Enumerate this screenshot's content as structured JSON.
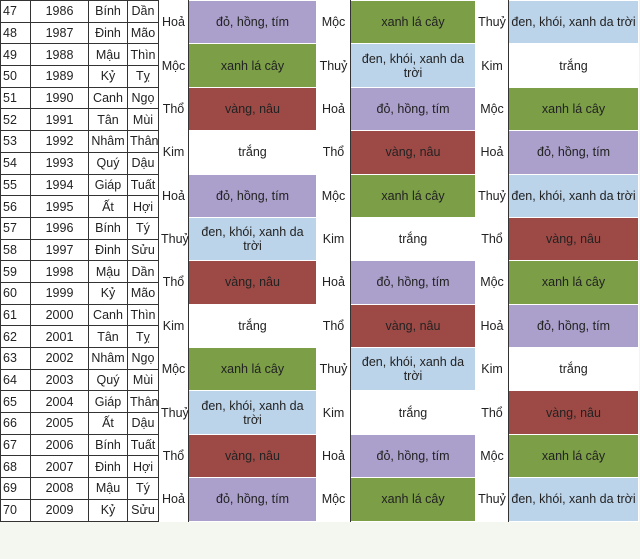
{
  "palette": {
    "đỏ, hồng, tím": "#ab9fcb",
    "xanh lá cây": "#7b9e47",
    "đen, khói, xanh da trời": "#bcd4ea",
    "trắng": "#ffffff",
    "vàng, nâu": "#9d4a46"
  },
  "groups": [
    {
      "rows": [
        [
          "47",
          "1986",
          "Bính",
          "Dần"
        ],
        [
          "48",
          "1987",
          "Đinh",
          "Mão"
        ]
      ],
      "cells": [
        [
          "Hoả",
          "đỏ, hồng, tím"
        ],
        [
          "Mộc",
          "xanh lá cây"
        ],
        [
          "Thuỷ",
          "đen, khói, xanh da trời"
        ]
      ]
    },
    {
      "rows": [
        [
          "49",
          "1988",
          "Mậu",
          "Thìn"
        ],
        [
          "50",
          "1989",
          "Kỷ",
          "Tỵ"
        ]
      ],
      "cells": [
        [
          "Mộc",
          "xanh lá cây"
        ],
        [
          "Thuỷ",
          "đen, khói, xanh da trời"
        ],
        [
          "Kim",
          "trắng"
        ]
      ]
    },
    {
      "rows": [
        [
          "51",
          "1990",
          "Canh",
          "Ngọ"
        ],
        [
          "52",
          "1991",
          "Tân",
          "Mùi"
        ]
      ],
      "cells": [
        [
          "Thổ",
          "vàng, nâu"
        ],
        [
          "Hoả",
          "đỏ, hồng, tím"
        ],
        [
          "Mộc",
          "xanh lá cây"
        ]
      ]
    },
    {
      "rows": [
        [
          "53",
          "1992",
          "Nhâm",
          "Thân"
        ],
        [
          "54",
          "1993",
          "Quý",
          "Dậu"
        ]
      ],
      "cells": [
        [
          "Kim",
          "trắng"
        ],
        [
          "Thổ",
          "vàng, nâu"
        ],
        [
          "Hoả",
          "đỏ, hồng, tím"
        ]
      ]
    },
    {
      "rows": [
        [
          "55",
          "1994",
          "Giáp",
          "Tuất"
        ],
        [
          "56",
          "1995",
          "Ất",
          "Hợi"
        ]
      ],
      "cells": [
        [
          "Hoả",
          "đỏ, hồng, tím"
        ],
        [
          "Mộc",
          "xanh lá cây"
        ],
        [
          "Thuỷ",
          "đen, khói, xanh da trời"
        ]
      ]
    },
    {
      "rows": [
        [
          "57",
          "1996",
          "Bính",
          "Tý"
        ],
        [
          "58",
          "1997",
          "Đinh",
          "Sửu"
        ]
      ],
      "cells": [
        [
          "Thuỷ",
          "đen, khói, xanh da trời"
        ],
        [
          "Kim",
          "trắng"
        ],
        [
          "Thổ",
          "vàng, nâu"
        ]
      ]
    },
    {
      "rows": [
        [
          "59",
          "1998",
          "Mậu",
          "Dần"
        ],
        [
          "60",
          "1999",
          "Kỷ",
          "Mão"
        ]
      ],
      "cells": [
        [
          "Thổ",
          "vàng, nâu"
        ],
        [
          "Hoả",
          "đỏ, hồng, tím"
        ],
        [
          "Mộc",
          "xanh lá cây"
        ]
      ]
    },
    {
      "rows": [
        [
          "61",
          "2000",
          "Canh",
          "Thìn"
        ],
        [
          "62",
          "2001",
          "Tân",
          "Tỵ"
        ]
      ],
      "cells": [
        [
          "Kim",
          "trắng"
        ],
        [
          "Thổ",
          "vàng, nâu"
        ],
        [
          "Hoả",
          "đỏ, hồng, tím"
        ]
      ]
    },
    {
      "rows": [
        [
          "63",
          "2002",
          "Nhâm",
          "Ngọ"
        ],
        [
          "64",
          "2003",
          "Quý",
          "Mùi"
        ]
      ],
      "cells": [
        [
          "Mộc",
          "xanh lá cây"
        ],
        [
          "Thuỷ",
          "đen, khói, xanh da trời"
        ],
        [
          "Kim",
          "trắng"
        ]
      ]
    },
    {
      "rows": [
        [
          "65",
          "2004",
          "Giáp",
          "Thân"
        ],
        [
          "66",
          "2005",
          "Ất",
          "Dậu"
        ]
      ],
      "cells": [
        [
          "Thuỷ",
          "đen, khói, xanh da trời"
        ],
        [
          "Kim",
          "trắng"
        ],
        [
          "Thổ",
          "vàng, nâu"
        ]
      ]
    },
    {
      "rows": [
        [
          "67",
          "2006",
          "Bính",
          "Tuất"
        ],
        [
          "68",
          "2007",
          "Đinh",
          "Hợi"
        ]
      ],
      "cells": [
        [
          "Thổ",
          "vàng, nâu"
        ],
        [
          "Hoả",
          "đỏ, hồng, tím"
        ],
        [
          "Mộc",
          "xanh lá cây"
        ]
      ]
    },
    {
      "rows": [
        [
          "69",
          "2008",
          "Mậu",
          "Tý"
        ],
        [
          "70",
          "2009",
          "Kỷ",
          "Sửu"
        ]
      ],
      "cells": [
        [
          "Hoả",
          "đỏ, hồng, tím"
        ],
        [
          "Mộc",
          "xanh lá cây"
        ],
        [
          "Thuỷ",
          "đen, khói, xanh da trời"
        ]
      ]
    }
  ]
}
